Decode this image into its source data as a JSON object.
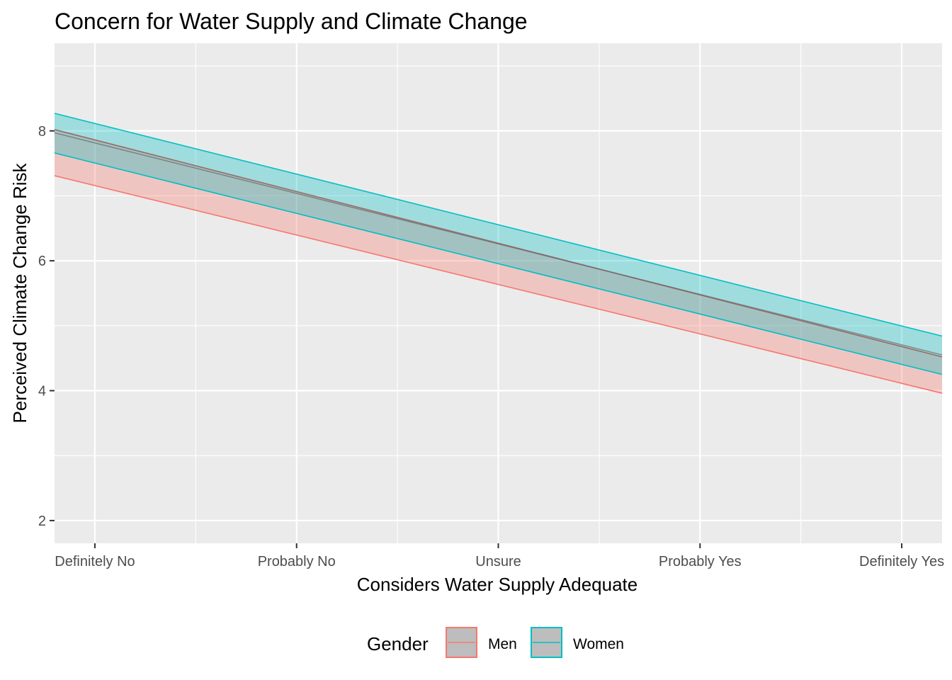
{
  "chart_data": {
    "type": "area",
    "title": "Concern for Water Supply and Climate Change",
    "xlabel": "Considers Water Supply Adequate",
    "ylabel": "Perceived Climate Change Risk",
    "categories": [
      "Definitely No",
      "Probably No",
      "Unsure",
      "Probably Yes",
      "Definitely Yes"
    ],
    "x_range": [
      0.8,
      5.2
    ],
    "ylim": [
      1.65,
      9.35
    ],
    "y_ticks": [
      2,
      4,
      6,
      8
    ],
    "grid": true,
    "legend": {
      "title": "Gender",
      "position": "bottom"
    },
    "series": [
      {
        "name": "Men",
        "color": "#F8766D",
        "x": [
          0.8,
          5.2
        ],
        "fit": [
          8.02,
          4.52
        ],
        "lower": [
          7.31,
          3.96
        ],
        "upper": [
          8.02,
          4.52
        ]
      },
      {
        "name": "Women",
        "color": "#00BFC4",
        "x": [
          0.8,
          5.2
        ],
        "fit": [
          7.97,
          4.55
        ],
        "lower": [
          7.66,
          4.25
        ],
        "upper": [
          8.27,
          4.84
        ]
      }
    ]
  }
}
